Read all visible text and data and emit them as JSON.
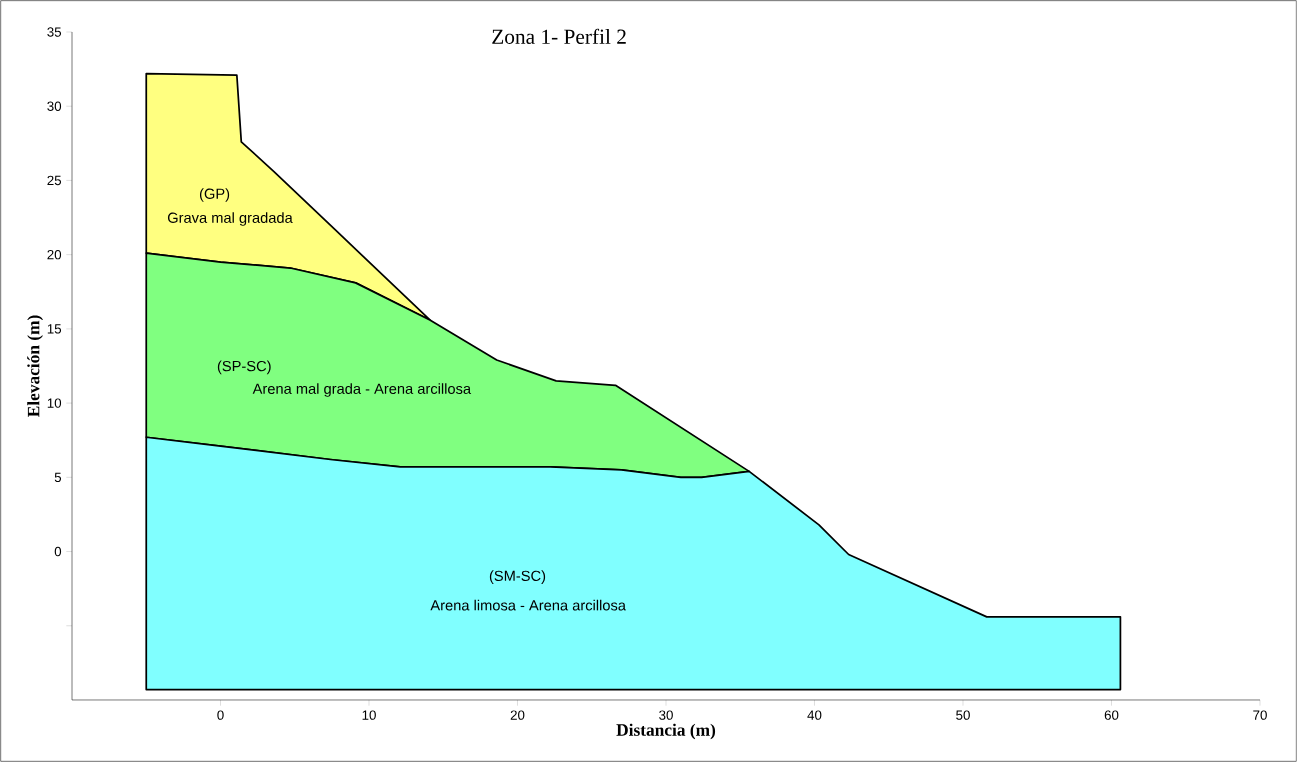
{
  "chart_data": {
    "type": "area",
    "title": "Zona 1- Perfil 2",
    "xlabel": "Distancia (m)",
    "ylabel": "Elevación (m)",
    "series": [
      {
        "color": "#ffff80",
        "x": [
          -5,
          1.1,
          1.4,
          3.6,
          7.7,
          14.1,
          9.1,
          4.7,
          0,
          -5
        ],
        "values": [
          32.2,
          32.1,
          27.6,
          25.6,
          21.7,
          15.6,
          18.1,
          19.1,
          19.5,
          20.1
        ]
      },
      {
        "color": "#80ff80",
        "x": [
          -5,
          0,
          4.7,
          9.1,
          14.1,
          18.6,
          22.6,
          26.6,
          35.6,
          32.4,
          31,
          27,
          22.2,
          12.1,
          7.4,
          0,
          -5
        ],
        "values": [
          20.1,
          19.5,
          19.1,
          18.1,
          15.6,
          12.9,
          11.5,
          11.2,
          5.4,
          5.0,
          5.0,
          5.5,
          5.7,
          5.7,
          6.2,
          7.1,
          7.7
        ]
      },
      {
        "color": "#80ffff",
        "x": [
          -5,
          0,
          7.4,
          12.1,
          22.2,
          27,
          31,
          32.4,
          35.6,
          40.3,
          42.3,
          51.6,
          60.6,
          60.6,
          -5
        ],
        "values": [
          7.7,
          7.1,
          6.2,
          5.7,
          5.7,
          5.5,
          5.0,
          5.0,
          5.4,
          1.8,
          -0.2,
          -4.4,
          -4.4,
          -9.3,
          -9.3
        ]
      }
    ],
    "annotations": [
      "(GP)",
      "Grava mal gradada",
      "(SP-SC)",
      "Arena mal grada - Arena arcillosa",
      "(SM-SC)",
      "Arena limosa - Arena arcillosa"
    ],
    "xlim": [
      -10,
      70
    ],
    "ylim": [
      -10,
      35
    ],
    "xticks": [
      0,
      10,
      20,
      30,
      40,
      50,
      60,
      70
    ],
    "yticks": [
      {
        "value": -5,
        "label": null
      },
      0,
      5,
      10,
      15,
      20,
      25,
      30,
      35
    ],
    "grid": false
  }
}
